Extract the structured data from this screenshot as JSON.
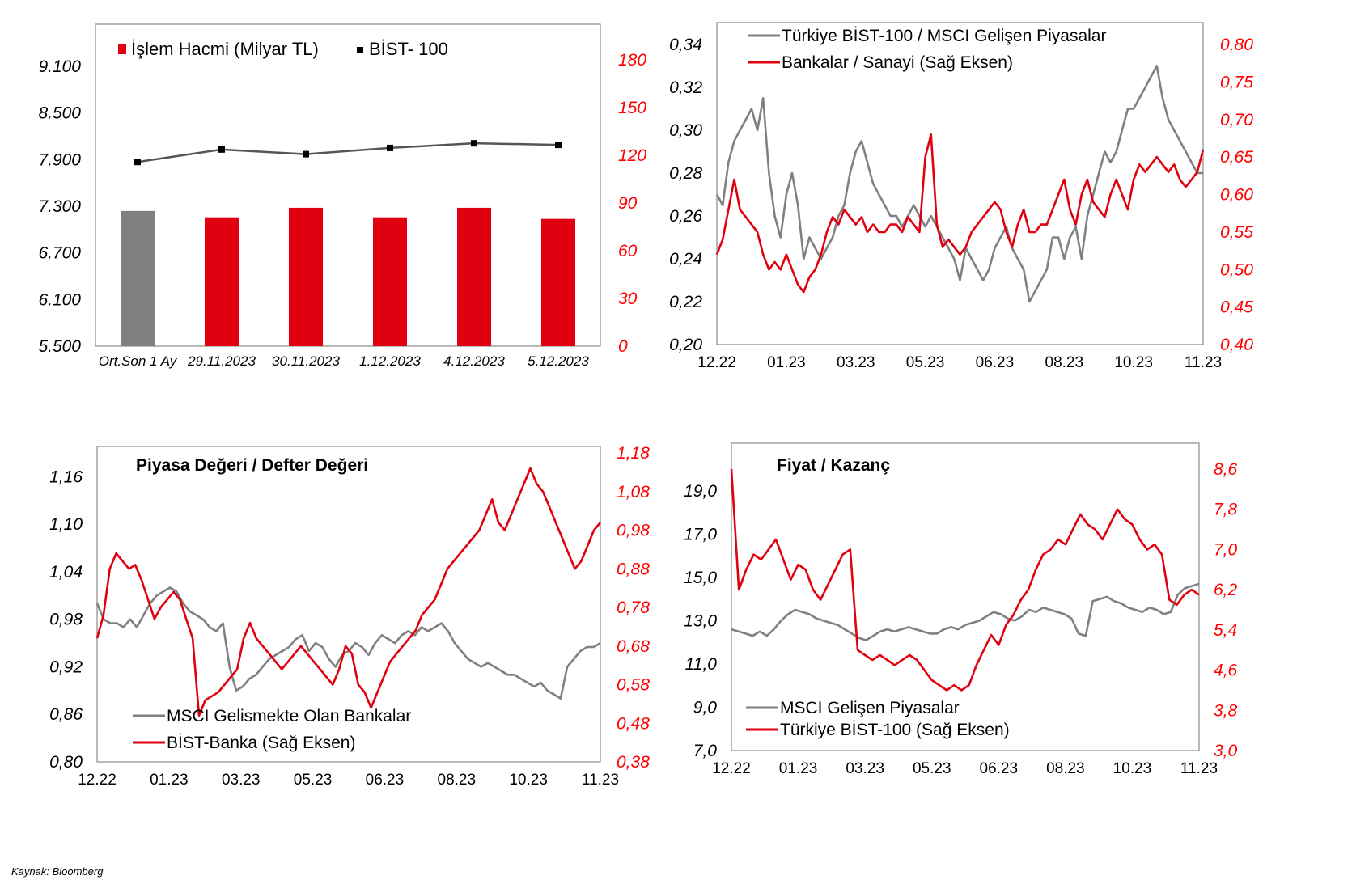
{
  "colors": {
    "red": "#e0000f",
    "gray": "#808080",
    "line_dark": "#555555",
    "axis_red": "#ff0000"
  },
  "source": "Kaynak: Bloomberg",
  "chart_data": [
    {
      "type": "bar",
      "legend": [
        {
          "name": "İşlem Hacmi (Milyar TL)",
          "marker": "square",
          "color": "#e0000f"
        },
        {
          "name": "BİST- 100",
          "marker": "square",
          "color": "#000000"
        }
      ],
      "categories": [
        "Ort.Son 1 Ay",
        "29.11.2023",
        "30.11.2023",
        "1.12.2023",
        "4.12.2023",
        "5.12.2023"
      ],
      "series": [
        {
          "name": "İşlem Hacmi (Milyar TL)",
          "axis": "right",
          "values": [
            85,
            81,
            87,
            81,
            87,
            80
          ],
          "bar_colors": [
            "#808080",
            "#e0000f",
            "#e0000f",
            "#e0000f",
            "#e0000f",
            "#e0000f"
          ]
        },
        {
          "name": "BİST- 100",
          "axis": "left",
          "type": "line",
          "values": [
            7870,
            8030,
            7970,
            8050,
            8110,
            8090
          ]
        }
      ],
      "y_left": {
        "min": 5500,
        "max": 9100,
        "ticks": [
          "5.500",
          "6.100",
          "6.700",
          "7.300",
          "7.900",
          "8.500",
          "9.100"
        ],
        "tick_values": [
          5500,
          6100,
          6700,
          7300,
          7900,
          8500,
          9100
        ]
      },
      "y_right": {
        "min": 0,
        "max": 180,
        "ticks": [
          "0",
          "30",
          "60",
          "90",
          "120",
          "150",
          "180"
        ],
        "tick_values": [
          0,
          30,
          60,
          90,
          120,
          150,
          180
        ]
      },
      "legend_position": "top-left"
    },
    {
      "type": "line",
      "legend_position": "top-left",
      "x_ticks": [
        "12.22",
        "01.23",
        "03.23",
        "05.23",
        "06.23",
        "08.23",
        "10.23",
        "11.23"
      ],
      "y_left": {
        "min": 0.2,
        "max": 0.34,
        "ticks": [
          "0,20",
          "0,22",
          "0,24",
          "0,26",
          "0,28",
          "0,30",
          "0,32",
          "0,34"
        ],
        "tick_values": [
          0.2,
          0.22,
          0.24,
          0.26,
          0.28,
          0.3,
          0.32,
          0.34
        ]
      },
      "y_right": {
        "min": 0.4,
        "max": 0.8,
        "ticks": [
          "0,40",
          "0,45",
          "0,50",
          "0,55",
          "0,60",
          "0,65",
          "0,70",
          "0,75",
          "0,80"
        ],
        "tick_values": [
          0.4,
          0.45,
          0.5,
          0.55,
          0.6,
          0.65,
          0.7,
          0.75,
          0.8
        ]
      },
      "series": [
        {
          "name": "Türkiye BİST-100 / MSCI Gelişen Piyasalar",
          "axis": "left",
          "color": "#808080",
          "values": [
            0.27,
            0.265,
            0.285,
            0.295,
            0.3,
            0.305,
            0.31,
            0.3,
            0.315,
            0.28,
            0.26,
            0.25,
            0.27,
            0.28,
            0.265,
            0.24,
            0.25,
            0.245,
            0.24,
            0.245,
            0.25,
            0.26,
            0.265,
            0.28,
            0.29,
            0.295,
            0.285,
            0.275,
            0.27,
            0.265,
            0.26,
            0.26,
            0.255,
            0.26,
            0.265,
            0.26,
            0.255,
            0.26,
            0.255,
            0.25,
            0.245,
            0.24,
            0.23,
            0.245,
            0.24,
            0.235,
            0.23,
            0.235,
            0.245,
            0.25,
            0.255,
            0.245,
            0.24,
            0.235,
            0.22,
            0.225,
            0.23,
            0.235,
            0.25,
            0.25,
            0.24,
            0.25,
            0.255,
            0.24,
            0.26,
            0.27,
            0.28,
            0.29,
            0.285,
            0.29,
            0.3,
            0.31,
            0.31,
            0.315,
            0.32,
            0.325,
            0.33,
            0.315,
            0.305,
            0.3,
            0.295,
            0.29,
            0.285,
            0.28,
            0.28
          ]
        },
        {
          "name": "Bankalar / Sanayi (Sağ Eksen)",
          "axis": "right",
          "color": "#e0000f",
          "values": [
            0.52,
            0.54,
            0.58,
            0.62,
            0.58,
            0.57,
            0.56,
            0.55,
            0.52,
            0.5,
            0.51,
            0.5,
            0.52,
            0.5,
            0.48,
            0.47,
            0.49,
            0.5,
            0.52,
            0.55,
            0.57,
            0.56,
            0.58,
            0.57,
            0.56,
            0.57,
            0.55,
            0.56,
            0.55,
            0.55,
            0.56,
            0.56,
            0.55,
            0.57,
            0.56,
            0.55,
            0.65,
            0.68,
            0.56,
            0.53,
            0.54,
            0.53,
            0.52,
            0.53,
            0.55,
            0.56,
            0.57,
            0.58,
            0.59,
            0.58,
            0.55,
            0.53,
            0.56,
            0.58,
            0.55,
            0.55,
            0.56,
            0.56,
            0.58,
            0.6,
            0.62,
            0.58,
            0.56,
            0.6,
            0.62,
            0.59,
            0.58,
            0.57,
            0.6,
            0.62,
            0.6,
            0.58,
            0.62,
            0.64,
            0.63,
            0.64,
            0.65,
            0.64,
            0.63,
            0.64,
            0.62,
            0.61,
            0.62,
            0.63,
            0.66
          ]
        }
      ]
    },
    {
      "type": "line",
      "title": "Piyasa Değeri / Defter Değeri",
      "legend_position": "bottom-left",
      "x_ticks": [
        "12.22",
        "01.23",
        "03.23",
        "05.23",
        "06.23",
        "08.23",
        "10.23",
        "11.23"
      ],
      "y_left": {
        "min": 0.8,
        "max": 1.19,
        "ticks": [
          "0,80",
          "0,86",
          "0,92",
          "0,98",
          "1,04",
          "1,10",
          "1,16"
        ],
        "tick_values": [
          0.8,
          0.86,
          0.92,
          0.98,
          1.04,
          1.1,
          1.16
        ]
      },
      "y_right": {
        "min": 0.38,
        "max": 1.18,
        "ticks": [
          "0,38",
          "0,48",
          "0,58",
          "0,68",
          "0,78",
          "0,88",
          "0,98",
          "1,08",
          "1,18"
        ],
        "tick_values": [
          0.38,
          0.48,
          0.58,
          0.68,
          0.78,
          0.88,
          0.98,
          1.08,
          1.18
        ]
      },
      "series": [
        {
          "name": "MSCI Gelismekte Olan Bankalar",
          "axis": "left",
          "color": "#808080",
          "values": [
            1.0,
            0.98,
            0.975,
            0.975,
            0.97,
            0.98,
            0.97,
            0.985,
            1.0,
            1.01,
            1.015,
            1.02,
            1.015,
            1.0,
            0.99,
            0.985,
            0.98,
            0.97,
            0.965,
            0.975,
            0.92,
            0.89,
            0.895,
            0.905,
            0.91,
            0.92,
            0.93,
            0.935,
            0.94,
            0.945,
            0.955,
            0.96,
            0.94,
            0.95,
            0.945,
            0.93,
            0.92,
            0.935,
            0.94,
            0.95,
            0.945,
            0.935,
            0.95,
            0.96,
            0.955,
            0.95,
            0.96,
            0.965,
            0.96,
            0.97,
            0.965,
            0.97,
            0.975,
            0.965,
            0.95,
            0.94,
            0.93,
            0.925,
            0.92,
            0.925,
            0.92,
            0.915,
            0.91,
            0.91,
            0.905,
            0.9,
            0.895,
            0.9,
            0.89,
            0.885,
            0.88,
            0.92,
            0.93,
            0.94,
            0.945,
            0.945,
            0.95
          ]
        },
        {
          "name": "BİST-Banka (Sağ Eksen)",
          "axis": "right",
          "color": "#e0000f",
          "values": [
            0.7,
            0.76,
            0.88,
            0.92,
            0.9,
            0.88,
            0.89,
            0.85,
            0.8,
            0.75,
            0.78,
            0.8,
            0.82,
            0.8,
            0.75,
            0.7,
            0.5,
            0.54,
            0.55,
            0.56,
            0.58,
            0.6,
            0.62,
            0.7,
            0.74,
            0.7,
            0.68,
            0.66,
            0.64,
            0.62,
            0.64,
            0.66,
            0.68,
            0.66,
            0.64,
            0.62,
            0.6,
            0.58,
            0.62,
            0.68,
            0.66,
            0.58,
            0.56,
            0.52,
            0.56,
            0.6,
            0.64,
            0.66,
            0.68,
            0.7,
            0.72,
            0.76,
            0.78,
            0.8,
            0.84,
            0.88,
            0.9,
            0.92,
            0.94,
            0.96,
            0.98,
            1.02,
            1.06,
            1.0,
            0.98,
            1.02,
            1.06,
            1.1,
            1.14,
            1.1,
            1.08,
            1.04,
            1.0,
            0.96,
            0.92,
            0.88,
            0.9,
            0.94,
            0.98,
            1.0
          ]
        }
      ]
    },
    {
      "type": "line",
      "title": "Fiyat / Kazanç",
      "legend_position": "bottom-left",
      "x_ticks": [
        "12.22",
        "01.23",
        "03.23",
        "05.23",
        "06.23",
        "08.23",
        "10.23",
        "11.23"
      ],
      "y_left": {
        "min": 7.0,
        "max": 20.0,
        "ticks": [
          "7,0",
          "9,0",
          "11,0",
          "13,0",
          "15,0",
          "17,0",
          "19,0"
        ],
        "tick_values": [
          7,
          9,
          11,
          13,
          15,
          17,
          19
        ]
      },
      "y_right": {
        "min": 3.0,
        "max": 8.6,
        "ticks": [
          "3,0",
          "3,8",
          "4,6",
          "5,4",
          "6,2",
          "7,0",
          "7,8",
          "8,6"
        ],
        "tick_values": [
          3.0,
          3.8,
          4.6,
          5.4,
          6.2,
          7.0,
          7.8,
          8.6
        ]
      },
      "series": [
        {
          "name": "MSCI Gelişen Piyasalar",
          "axis": "left",
          "color": "#808080",
          "values": [
            12.6,
            12.5,
            12.4,
            12.3,
            12.5,
            12.3,
            12.6,
            13.0,
            13.3,
            13.5,
            13.4,
            13.3,
            13.1,
            13.0,
            12.9,
            12.8,
            12.6,
            12.4,
            12.2,
            12.1,
            12.3,
            12.5,
            12.6,
            12.5,
            12.6,
            12.7,
            12.6,
            12.5,
            12.4,
            12.4,
            12.6,
            12.7,
            12.6,
            12.8,
            12.9,
            13.0,
            13.2,
            13.4,
            13.3,
            13.1,
            13.0,
            13.2,
            13.5,
            13.4,
            13.6,
            13.5,
            13.4,
            13.3,
            13.1,
            12.4,
            12.3,
            13.9,
            14.0,
            14.1,
            13.9,
            13.8,
            13.6,
            13.5,
            13.4,
            13.6,
            13.5,
            13.3,
            13.4,
            14.2,
            14.5,
            14.6,
            14.7
          ]
        },
        {
          "name": "Türkiye BİST-100 (Sağ Eksen)",
          "axis": "right",
          "color": "#e0000f",
          "values": [
            8.6,
            6.2,
            6.6,
            6.9,
            6.8,
            7.0,
            7.2,
            6.8,
            6.4,
            6.7,
            6.6,
            6.2,
            6.0,
            6.3,
            6.6,
            6.9,
            7.0,
            5.0,
            4.9,
            4.8,
            4.9,
            4.8,
            4.7,
            4.8,
            4.9,
            4.8,
            4.6,
            4.4,
            4.3,
            4.2,
            4.3,
            4.2,
            4.3,
            4.7,
            5.0,
            5.3,
            5.1,
            5.5,
            5.7,
            6.0,
            6.2,
            6.6,
            6.9,
            7.0,
            7.2,
            7.1,
            7.4,
            7.7,
            7.5,
            7.4,
            7.2,
            7.5,
            7.8,
            7.6,
            7.5,
            7.2,
            7.0,
            7.1,
            6.9,
            6.0,
            5.9,
            6.1,
            6.2,
            6.1
          ]
        }
      ]
    }
  ]
}
